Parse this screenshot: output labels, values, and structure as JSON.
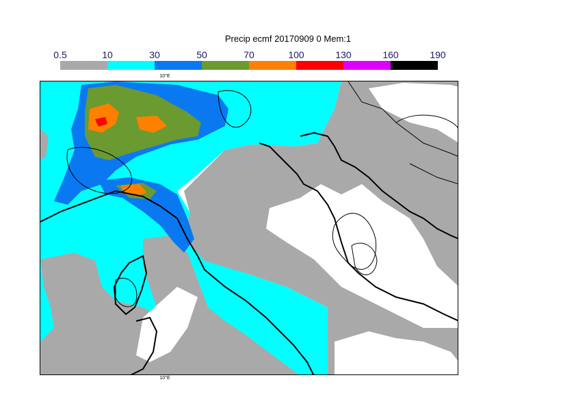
{
  "title": "Precip ecmf 20170909 0 Mem:1",
  "colorbar": {
    "ticks": [
      "0.5",
      "10",
      "30",
      "50",
      "70",
      "100",
      "130",
      "160",
      "190"
    ],
    "colors": [
      "#a9a9a9",
      "#00ffff",
      "#0a78f0",
      "#6b9a30",
      "#ff8000",
      "#ff0000",
      "#dd00ff",
      "#000000"
    ]
  },
  "map": {
    "top_lon_label": "10°E",
    "bottom_lon_label": "10°E"
  }
}
